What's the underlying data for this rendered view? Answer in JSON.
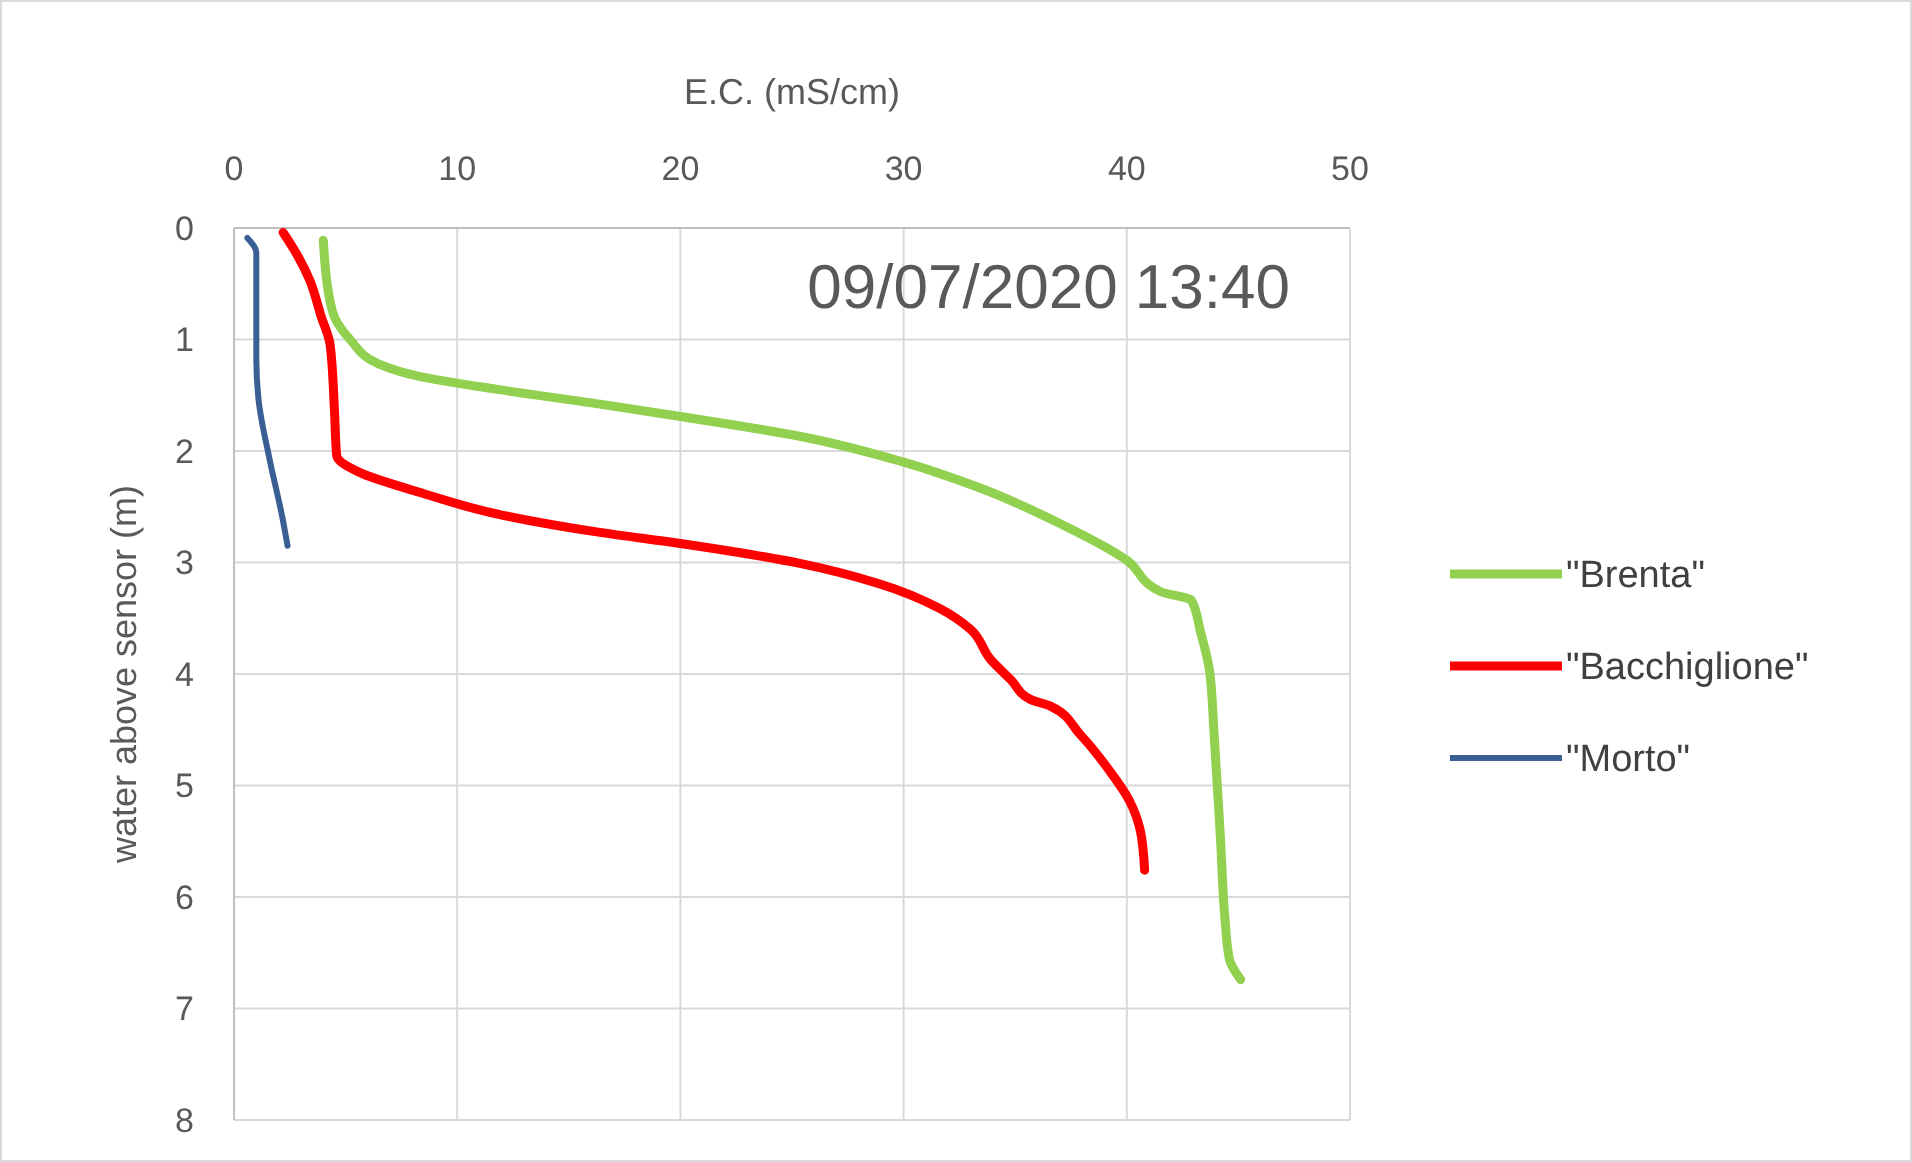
{
  "chart_data": {
    "type": "line",
    "xlabel": "E.C. (mS/cm)",
    "ylabel": "water above sensor (m)",
    "annotations": [
      "09/07/2020  13:40"
    ],
    "xlim": [
      0,
      50
    ],
    "xticks": [
      0,
      10,
      20,
      30,
      40,
      50
    ],
    "ylim": [
      8,
      0
    ],
    "yticks": [
      0,
      1,
      2,
      3,
      4,
      5,
      6,
      7,
      8
    ],
    "grid": true,
    "legend": "right",
    "marker": "none",
    "line_style": "solid",
    "series": [
      {
        "name": "\"Brenta\"",
        "color": "#92d050",
        "x": [
          4.0,
          4.4,
          5.2,
          6.5,
          8.3,
          11.9,
          16.4,
          20,
          25.4,
          30,
          33.4,
          37,
          40,
          41.5,
          42.9,
          43.3,
          43.7,
          43.9,
          44.2,
          44.4,
          44.6,
          45.1
        ],
        "values": [
          0.11,
          0.74,
          1.0,
          1.22,
          1.33,
          1.45,
          1.58,
          1.69,
          1.87,
          2.1,
          2.33,
          2.65,
          2.98,
          3.26,
          3.34,
          3.62,
          3.96,
          4.5,
          5.49,
          6.2,
          6.56,
          6.74
        ]
      },
      {
        "name": "\"Bacchiglione\"",
        "color": "#ff0000",
        "x": [
          2.2,
          2.8,
          3.4,
          3.9,
          4.3,
          4.5,
          4.6,
          5.6,
          8.3,
          11.9,
          16.4,
          20,
          25.4,
          28.9,
          31.6,
          33,
          33.9,
          34.8,
          35.7,
          36.6,
          37.9,
          39.2,
          40.1,
          40.6,
          40.8
        ],
        "values": [
          0.04,
          0.23,
          0.47,
          0.79,
          1.04,
          1.63,
          2.04,
          2.19,
          2.37,
          2.57,
          2.73,
          2.83,
          3.01,
          3.19,
          3.41,
          3.6,
          3.87,
          4.05,
          4.23,
          4.29,
          4.54,
          4.86,
          5.13,
          5.4,
          5.76
        ]
      },
      {
        "name": "\"Morto\"",
        "color": "#3a5f95",
        "x": [
          0.6,
          1.0,
          1.0,
          1.1,
          1.6,
          2.15,
          2.4
        ],
        "values": [
          0.09,
          0.22,
          1.18,
          1.54,
          2.08,
          2.58,
          2.85
        ]
      }
    ]
  }
}
